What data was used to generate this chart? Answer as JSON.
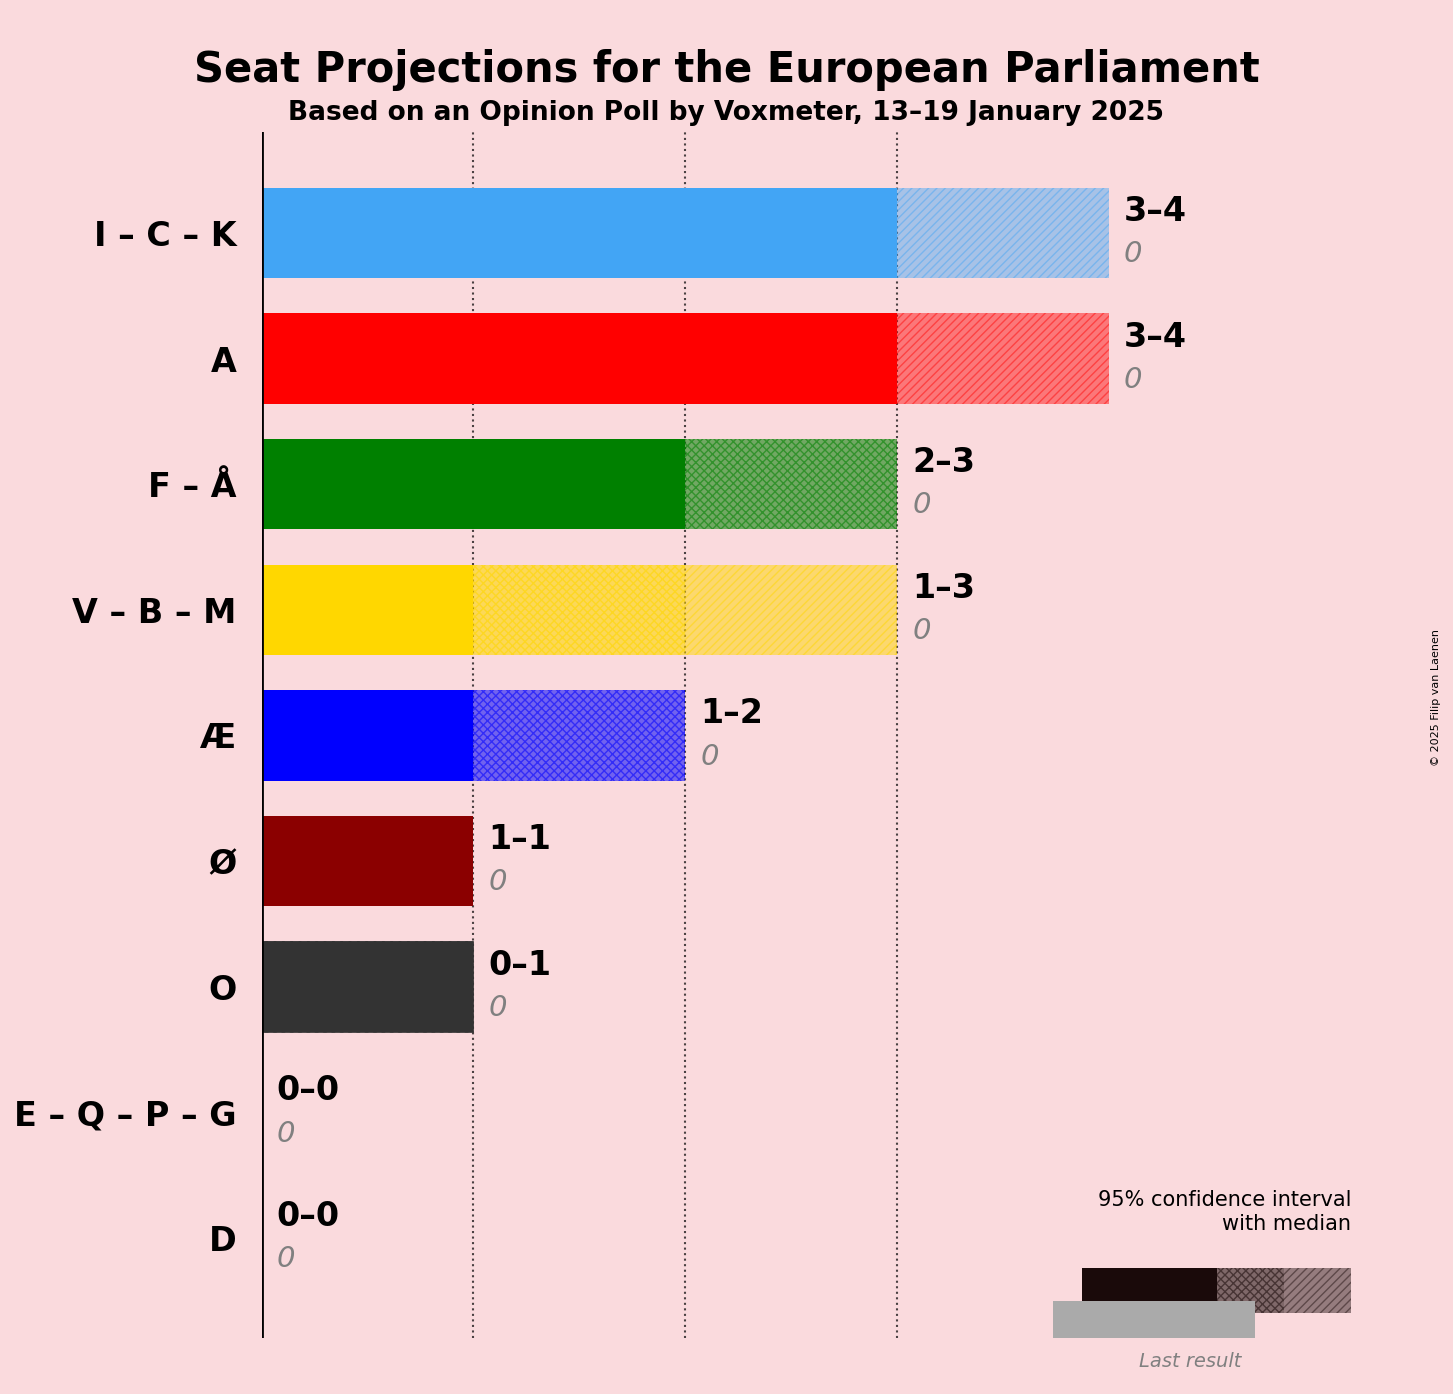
{
  "title": "Seat Projections for the European Parliament",
  "subtitle": "Based on an Opinion Poll by Voxmeter, 13–19 January 2025",
  "background_color": "#FADADD",
  "parties": [
    "I – C – K",
    "A",
    "F – Å",
    "V – B – M",
    "Æ",
    "Ø",
    "O",
    "E – Q – P – G",
    "D"
  ],
  "colors": [
    "#42A5F5",
    "#FF0000",
    "#008000",
    "#FFD700",
    "#0000FF",
    "#8B0000",
    "#222222",
    "#FADADD",
    "#FADADD"
  ],
  "median_seats": [
    3,
    3,
    2,
    1,
    1,
    1,
    0,
    0,
    0
  ],
  "ci_low_seats": [
    3,
    3,
    2,
    1,
    1,
    1,
    0,
    0,
    0
  ],
  "ci_high_seats": [
    4,
    4,
    3,
    3,
    2,
    1,
    1,
    0,
    0
  ],
  "label_range": [
    "3–4",
    "3–4",
    "2–3",
    "1–3",
    "1–2",
    "1–1",
    "0–1",
    "0–0",
    "0–0"
  ],
  "last_result": [
    0,
    0,
    0,
    0,
    0,
    0,
    0,
    0,
    0
  ],
  "dotted_lines": [
    1,
    2,
    3
  ],
  "xlim": [
    0,
    4.8
  ],
  "title_fontsize": 30,
  "subtitle_fontsize": 19,
  "label_fontsize": 24,
  "bar_height": 0.72,
  "copyright_text": "© 2025 Filip van Laenen"
}
